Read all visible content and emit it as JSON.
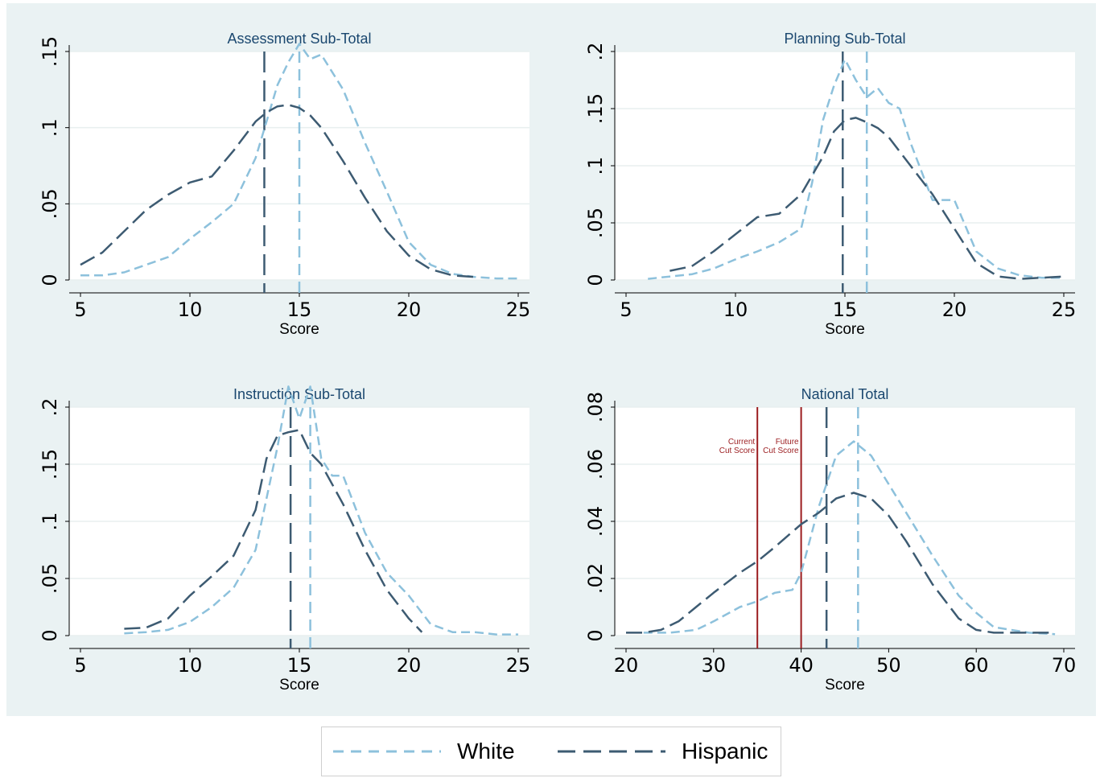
{
  "colors": {
    "white": "#8dc1dc",
    "hispanic": "#3d5b72",
    "cut": "#9b1c1f",
    "background": "#eaf2f3",
    "title": "#1a476f"
  },
  "legend": [
    {
      "name": "White",
      "color": "#8dc1dc",
      "dash": "13,9"
    },
    {
      "name": "Hispanic",
      "color": "#3d5b72",
      "dash": "22,10"
    }
  ],
  "chart_data": [
    {
      "type": "line",
      "title": "Assessment Sub-Total",
      "xlabel": "Score",
      "ylabel": "",
      "xlim": [
        5,
        25
      ],
      "ylim": [
        0,
        0.15
      ],
      "xticks": [
        5,
        10,
        15,
        20,
        25
      ],
      "yticks": [
        0,
        0.05,
        0.1,
        0.15
      ],
      "ytick_labels": [
        "0",
        ".05",
        ".1",
        ".15"
      ],
      "grid": true,
      "series": [
        {
          "name": "White",
          "x": [
            5,
            6,
            7,
            8,
            9,
            10,
            11,
            12,
            13,
            14,
            14.5,
            15,
            15.5,
            16,
            17,
            18,
            19,
            20,
            21,
            22,
            23,
            24,
            25
          ],
          "y": [
            0.003,
            0.003,
            0.005,
            0.01,
            0.015,
            0.027,
            0.038,
            0.05,
            0.08,
            0.128,
            0.143,
            0.155,
            0.145,
            0.148,
            0.125,
            0.09,
            0.058,
            0.025,
            0.01,
            0.004,
            0.002,
            0.001,
            0.001
          ]
        },
        {
          "name": "Hispanic",
          "x": [
            5,
            6,
            7,
            8,
            9,
            10,
            11,
            12,
            13,
            13.5,
            14,
            14.5,
            15,
            15.5,
            16,
            17,
            18,
            19,
            20,
            21,
            22,
            23
          ],
          "y": [
            0.01,
            0.018,
            0.032,
            0.046,
            0.056,
            0.064,
            0.068,
            0.085,
            0.104,
            0.11,
            0.114,
            0.115,
            0.113,
            0.108,
            0.1,
            0.078,
            0.054,
            0.032,
            0.016,
            0.007,
            0.003,
            0.002
          ]
        }
      ],
      "vlines": [
        {
          "series": "Hispanic",
          "x": 13.4
        },
        {
          "series": "White",
          "x": 15
        }
      ]
    },
    {
      "type": "line",
      "title": "Planning Sub-Total",
      "xlabel": "Score",
      "ylabel": "",
      "xlim": [
        5,
        25
      ],
      "ylim": [
        0,
        0.2
      ],
      "xticks": [
        5,
        10,
        15,
        20,
        25
      ],
      "yticks": [
        0,
        0.05,
        0.1,
        0.15,
        0.2
      ],
      "ytick_labels": [
        "0",
        ".05",
        ".1",
        ".15",
        ".2"
      ],
      "grid": true,
      "series": [
        {
          "name": "White",
          "x": [
            6,
            7,
            8,
            9,
            10,
            11,
            12,
            13,
            13.5,
            14,
            14.5,
            15,
            15.5,
            16,
            16.5,
            17,
            17.5,
            18,
            19,
            20,
            21,
            22,
            23,
            24,
            25
          ],
          "y": [
            0.001,
            0.003,
            0.005,
            0.01,
            0.018,
            0.025,
            0.033,
            0.045,
            0.085,
            0.14,
            0.17,
            0.193,
            0.175,
            0.16,
            0.168,
            0.155,
            0.15,
            0.12,
            0.07,
            0.07,
            0.025,
            0.01,
            0.004,
            0.002,
            0.002
          ]
        },
        {
          "name": "Hispanic",
          "x": [
            7,
            8,
            9,
            10,
            11,
            12,
            13,
            14,
            14.5,
            15,
            15.5,
            16,
            16.5,
            17,
            18,
            19,
            20,
            21,
            22,
            23,
            24,
            25
          ],
          "y": [
            0.008,
            0.012,
            0.025,
            0.04,
            0.055,
            0.058,
            0.075,
            0.108,
            0.13,
            0.14,
            0.142,
            0.138,
            0.133,
            0.125,
            0.1,
            0.075,
            0.045,
            0.015,
            0.003,
            0.001,
            0.002,
            0.003
          ]
        }
      ],
      "vlines": [
        {
          "series": "Hispanic",
          "x": 14.9
        },
        {
          "series": "White",
          "x": 16
        }
      ]
    },
    {
      "type": "line",
      "title": "Instruction Sub-Total",
      "xlabel": "Score",
      "ylabel": "",
      "xlim": [
        5,
        25
      ],
      "ylim": [
        0,
        0.2
      ],
      "xticks": [
        5,
        10,
        15,
        20,
        25
      ],
      "yticks": [
        0,
        0.05,
        0.1,
        0.15,
        0.2
      ],
      "ytick_labels": [
        "0",
        ".05",
        ".1",
        ".15",
        ".2"
      ],
      "grid": true,
      "series": [
        {
          "name": "White",
          "x": [
            7,
            8,
            9,
            10,
            11,
            12,
            13,
            13.5,
            14,
            14.5,
            15,
            15.5,
            16,
            16.5,
            17,
            18,
            19,
            20,
            21,
            22,
            23,
            24,
            25
          ],
          "y": [
            0.002,
            0.003,
            0.005,
            0.012,
            0.025,
            0.042,
            0.075,
            0.12,
            0.165,
            0.218,
            0.19,
            0.218,
            0.155,
            0.14,
            0.14,
            0.09,
            0.055,
            0.035,
            0.01,
            0.003,
            0.003,
            0.001,
            0.001
          ]
        },
        {
          "name": "Hispanic",
          "x": [
            7,
            8,
            9,
            10,
            11,
            12,
            13,
            13.5,
            14,
            14.5,
            15,
            15.5,
            16,
            17,
            18,
            19,
            20,
            20.6
          ],
          "y": [
            0.006,
            0.007,
            0.015,
            0.035,
            0.052,
            0.07,
            0.11,
            0.155,
            0.175,
            0.178,
            0.18,
            0.16,
            0.15,
            0.115,
            0.075,
            0.04,
            0.015,
            0.003
          ]
        }
      ],
      "vlines": [
        {
          "series": "Hispanic",
          "x": 14.6
        },
        {
          "series": "White",
          "x": 15.5
        }
      ]
    },
    {
      "type": "line",
      "title": "National Total",
      "xlabel": "Score",
      "ylabel": "",
      "xlim": [
        20,
        70
      ],
      "ylim": [
        0,
        0.08
      ],
      "xticks": [
        20,
        30,
        40,
        50,
        60,
        70
      ],
      "yticks": [
        0,
        0.02,
        0.04,
        0.06,
        0.08
      ],
      "ytick_labels": [
        "0",
        ".02",
        ".04",
        ".06",
        ".08"
      ],
      "grid": true,
      "series": [
        {
          "name": "White",
          "x": [
            22,
            25,
            28,
            30,
            33,
            35,
            37,
            39,
            40,
            42,
            44,
            46,
            48,
            50,
            52,
            55,
            58,
            60,
            62,
            64,
            66,
            69
          ],
          "y": [
            0.001,
            0.001,
            0.002,
            0.005,
            0.01,
            0.012,
            0.015,
            0.016,
            0.022,
            0.045,
            0.063,
            0.068,
            0.063,
            0.053,
            0.043,
            0.028,
            0.014,
            0.008,
            0.003,
            0.002,
            0.001,
            0.0005
          ]
        },
        {
          "name": "Hispanic",
          "x": [
            20,
            22,
            24,
            26,
            28,
            30,
            33,
            35,
            37,
            40,
            42,
            44,
            46,
            48,
            50,
            52,
            55,
            58,
            60,
            62,
            65,
            69
          ],
          "y": [
            0.001,
            0.001,
            0.002,
            0.005,
            0.01,
            0.015,
            0.022,
            0.026,
            0.031,
            0.039,
            0.043,
            0.048,
            0.05,
            0.048,
            0.042,
            0.033,
            0.018,
            0.006,
            0.002,
            0.001,
            0.001,
            0.001
          ]
        }
      ],
      "vlines": [
        {
          "series": "Hispanic",
          "x": 42.9
        },
        {
          "series": "White",
          "x": 46.5
        }
      ],
      "cut_lines": [
        {
          "x": 35,
          "label_line1": "Current",
          "label_line2": "Cut Score"
        },
        {
          "x": 40,
          "label_line1": "Future",
          "label_line2": "Cut Score"
        }
      ]
    }
  ]
}
